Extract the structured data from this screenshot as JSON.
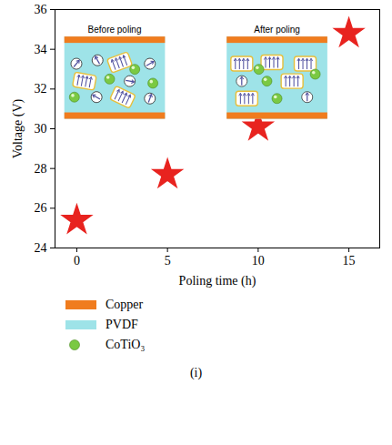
{
  "chart_data": {
    "type": "scatter",
    "x_label": "Poling time (h)",
    "y_label": "Voltage (V)",
    "x": [
      0,
      5,
      10,
      15
    ],
    "values": [
      25.4,
      27.7,
      30.1,
      34.8
    ],
    "color": "#e8231f",
    "marker": "star",
    "xlim": [
      -1.2,
      16.7
    ],
    "xticks": [
      0,
      5,
      10,
      15
    ],
    "ylim": [
      24,
      36
    ],
    "yticks": [
      24,
      26,
      28,
      30,
      32,
      34,
      36
    ],
    "grid": false,
    "annotations": [
      "Before poling",
      "After poling"
    ],
    "materials": [
      {
        "name": "Copper",
        "color": "#f07c1e",
        "marker": "rect"
      },
      {
        "name": "PVDF",
        "color": "#9ee3e8",
        "marker": "rect"
      },
      {
        "name": "CoTiO₃",
        "color": "#7ac943",
        "marker": "circle"
      }
    ],
    "panel": "(i)"
  }
}
